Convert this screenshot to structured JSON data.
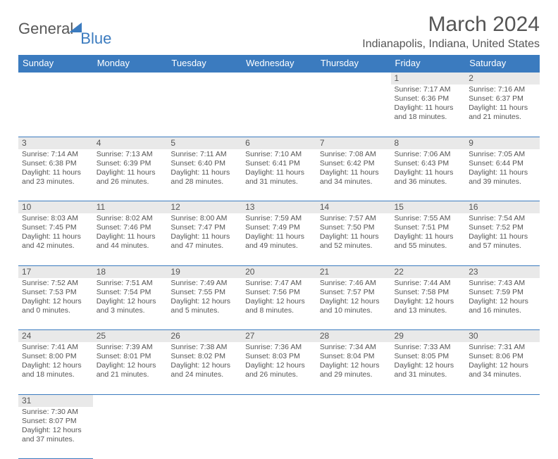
{
  "logo": {
    "word1": "General",
    "word2": "Blue"
  },
  "title": "March 2024",
  "subtitle": "Indianapolis, Indiana, United States",
  "day_headers": [
    "Sunday",
    "Monday",
    "Tuesday",
    "Wednesday",
    "Thursday",
    "Friday",
    "Saturday"
  ],
  "colors": {
    "header_bg": "#3b7bbf",
    "header_text": "#ffffff",
    "daynum_bg": "#e9e9e9",
    "text": "#555555",
    "border": "#3b7bbf"
  },
  "weeks": [
    [
      null,
      null,
      null,
      null,
      null,
      {
        "n": "1",
        "sunrise": "Sunrise: 7:17 AM",
        "sunset": "Sunset: 6:36 PM",
        "day1": "Daylight: 11 hours",
        "day2": "and 18 minutes."
      },
      {
        "n": "2",
        "sunrise": "Sunrise: 7:16 AM",
        "sunset": "Sunset: 6:37 PM",
        "day1": "Daylight: 11 hours",
        "day2": "and 21 minutes."
      }
    ],
    [
      {
        "n": "3",
        "sunrise": "Sunrise: 7:14 AM",
        "sunset": "Sunset: 6:38 PM",
        "day1": "Daylight: 11 hours",
        "day2": "and 23 minutes."
      },
      {
        "n": "4",
        "sunrise": "Sunrise: 7:13 AM",
        "sunset": "Sunset: 6:39 PM",
        "day1": "Daylight: 11 hours",
        "day2": "and 26 minutes."
      },
      {
        "n": "5",
        "sunrise": "Sunrise: 7:11 AM",
        "sunset": "Sunset: 6:40 PM",
        "day1": "Daylight: 11 hours",
        "day2": "and 28 minutes."
      },
      {
        "n": "6",
        "sunrise": "Sunrise: 7:10 AM",
        "sunset": "Sunset: 6:41 PM",
        "day1": "Daylight: 11 hours",
        "day2": "and 31 minutes."
      },
      {
        "n": "7",
        "sunrise": "Sunrise: 7:08 AM",
        "sunset": "Sunset: 6:42 PM",
        "day1": "Daylight: 11 hours",
        "day2": "and 34 minutes."
      },
      {
        "n": "8",
        "sunrise": "Sunrise: 7:06 AM",
        "sunset": "Sunset: 6:43 PM",
        "day1": "Daylight: 11 hours",
        "day2": "and 36 minutes."
      },
      {
        "n": "9",
        "sunrise": "Sunrise: 7:05 AM",
        "sunset": "Sunset: 6:44 PM",
        "day1": "Daylight: 11 hours",
        "day2": "and 39 minutes."
      }
    ],
    [
      {
        "n": "10",
        "sunrise": "Sunrise: 8:03 AM",
        "sunset": "Sunset: 7:45 PM",
        "day1": "Daylight: 11 hours",
        "day2": "and 42 minutes."
      },
      {
        "n": "11",
        "sunrise": "Sunrise: 8:02 AM",
        "sunset": "Sunset: 7:46 PM",
        "day1": "Daylight: 11 hours",
        "day2": "and 44 minutes."
      },
      {
        "n": "12",
        "sunrise": "Sunrise: 8:00 AM",
        "sunset": "Sunset: 7:47 PM",
        "day1": "Daylight: 11 hours",
        "day2": "and 47 minutes."
      },
      {
        "n": "13",
        "sunrise": "Sunrise: 7:59 AM",
        "sunset": "Sunset: 7:49 PM",
        "day1": "Daylight: 11 hours",
        "day2": "and 49 minutes."
      },
      {
        "n": "14",
        "sunrise": "Sunrise: 7:57 AM",
        "sunset": "Sunset: 7:50 PM",
        "day1": "Daylight: 11 hours",
        "day2": "and 52 minutes."
      },
      {
        "n": "15",
        "sunrise": "Sunrise: 7:55 AM",
        "sunset": "Sunset: 7:51 PM",
        "day1": "Daylight: 11 hours",
        "day2": "and 55 minutes."
      },
      {
        "n": "16",
        "sunrise": "Sunrise: 7:54 AM",
        "sunset": "Sunset: 7:52 PM",
        "day1": "Daylight: 11 hours",
        "day2": "and 57 minutes."
      }
    ],
    [
      {
        "n": "17",
        "sunrise": "Sunrise: 7:52 AM",
        "sunset": "Sunset: 7:53 PM",
        "day1": "Daylight: 12 hours",
        "day2": "and 0 minutes."
      },
      {
        "n": "18",
        "sunrise": "Sunrise: 7:51 AM",
        "sunset": "Sunset: 7:54 PM",
        "day1": "Daylight: 12 hours",
        "day2": "and 3 minutes."
      },
      {
        "n": "19",
        "sunrise": "Sunrise: 7:49 AM",
        "sunset": "Sunset: 7:55 PM",
        "day1": "Daylight: 12 hours",
        "day2": "and 5 minutes."
      },
      {
        "n": "20",
        "sunrise": "Sunrise: 7:47 AM",
        "sunset": "Sunset: 7:56 PM",
        "day1": "Daylight: 12 hours",
        "day2": "and 8 minutes."
      },
      {
        "n": "21",
        "sunrise": "Sunrise: 7:46 AM",
        "sunset": "Sunset: 7:57 PM",
        "day1": "Daylight: 12 hours",
        "day2": "and 10 minutes."
      },
      {
        "n": "22",
        "sunrise": "Sunrise: 7:44 AM",
        "sunset": "Sunset: 7:58 PM",
        "day1": "Daylight: 12 hours",
        "day2": "and 13 minutes."
      },
      {
        "n": "23",
        "sunrise": "Sunrise: 7:43 AM",
        "sunset": "Sunset: 7:59 PM",
        "day1": "Daylight: 12 hours",
        "day2": "and 16 minutes."
      }
    ],
    [
      {
        "n": "24",
        "sunrise": "Sunrise: 7:41 AM",
        "sunset": "Sunset: 8:00 PM",
        "day1": "Daylight: 12 hours",
        "day2": "and 18 minutes."
      },
      {
        "n": "25",
        "sunrise": "Sunrise: 7:39 AM",
        "sunset": "Sunset: 8:01 PM",
        "day1": "Daylight: 12 hours",
        "day2": "and 21 minutes."
      },
      {
        "n": "26",
        "sunrise": "Sunrise: 7:38 AM",
        "sunset": "Sunset: 8:02 PM",
        "day1": "Daylight: 12 hours",
        "day2": "and 24 minutes."
      },
      {
        "n": "27",
        "sunrise": "Sunrise: 7:36 AM",
        "sunset": "Sunset: 8:03 PM",
        "day1": "Daylight: 12 hours",
        "day2": "and 26 minutes."
      },
      {
        "n": "28",
        "sunrise": "Sunrise: 7:34 AM",
        "sunset": "Sunset: 8:04 PM",
        "day1": "Daylight: 12 hours",
        "day2": "and 29 minutes."
      },
      {
        "n": "29",
        "sunrise": "Sunrise: 7:33 AM",
        "sunset": "Sunset: 8:05 PM",
        "day1": "Daylight: 12 hours",
        "day2": "and 31 minutes."
      },
      {
        "n": "30",
        "sunrise": "Sunrise: 7:31 AM",
        "sunset": "Sunset: 8:06 PM",
        "day1": "Daylight: 12 hours",
        "day2": "and 34 minutes."
      }
    ],
    [
      {
        "n": "31",
        "sunrise": "Sunrise: 7:30 AM",
        "sunset": "Sunset: 8:07 PM",
        "day1": "Daylight: 12 hours",
        "day2": "and 37 minutes."
      },
      null,
      null,
      null,
      null,
      null,
      null
    ]
  ]
}
